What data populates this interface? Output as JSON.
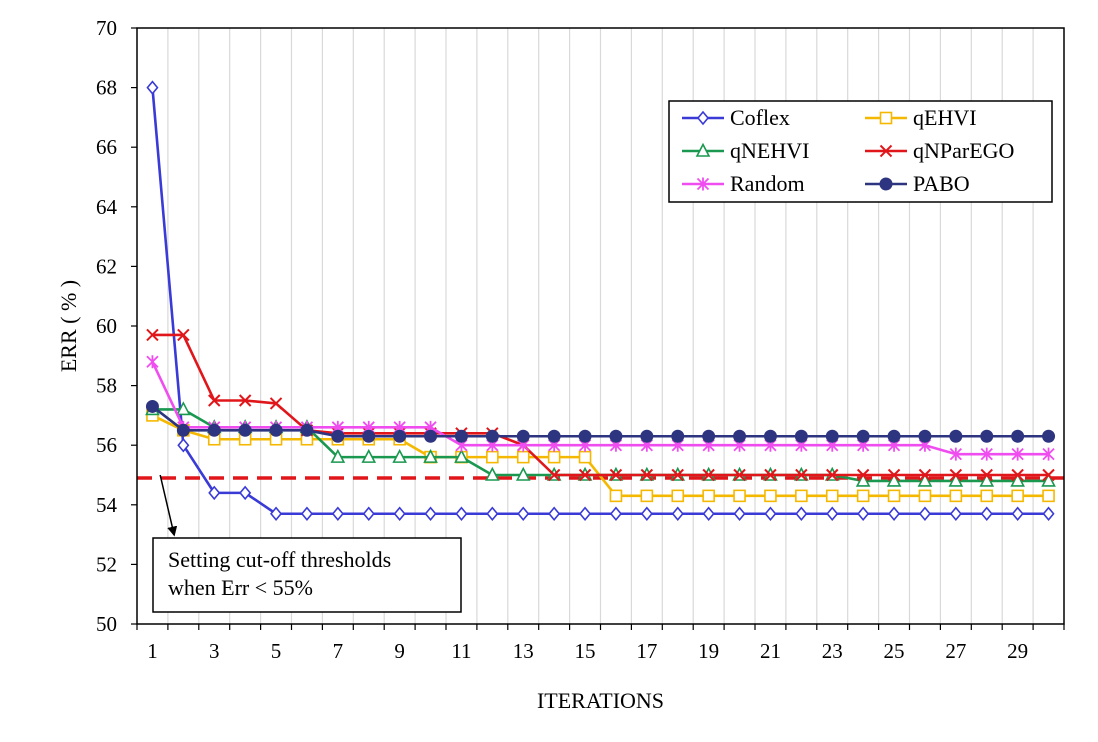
{
  "chart_data": {
    "type": "line",
    "title": "",
    "xlabel": "ITERATIONS",
    "ylabel": "ERR ( % )",
    "xlim": [
      1,
      30
    ],
    "ylim": [
      50,
      70
    ],
    "ytick_step": 2,
    "xtick_labels": [
      1,
      3,
      5,
      7,
      9,
      11,
      13,
      15,
      17,
      19,
      21,
      23,
      25,
      27,
      29
    ],
    "x_grid": true,
    "y_grid": false,
    "legend_position": "top-right",
    "x": [
      1,
      2,
      3,
      4,
      5,
      6,
      7,
      8,
      9,
      10,
      11,
      12,
      13,
      14,
      15,
      16,
      17,
      18,
      19,
      20,
      21,
      22,
      23,
      24,
      25,
      26,
      27,
      28,
      29,
      30
    ],
    "series": [
      {
        "name": "Coflex",
        "color": "#3a3ad6",
        "marker": "diamond",
        "values": [
          68.0,
          56.0,
          54.4,
          54.4,
          53.7,
          53.7,
          53.7,
          53.7,
          53.7,
          53.7,
          53.7,
          53.7,
          53.7,
          53.7,
          53.7,
          53.7,
          53.7,
          53.7,
          53.7,
          53.7,
          53.7,
          53.7,
          53.7,
          53.7,
          53.7,
          53.7,
          53.7,
          53.7,
          53.7,
          53.7
        ]
      },
      {
        "name": "qEHVI",
        "color": "#f5b800",
        "marker": "square",
        "values": [
          57.0,
          56.5,
          56.2,
          56.2,
          56.2,
          56.2,
          56.2,
          56.2,
          56.2,
          55.6,
          55.6,
          55.6,
          55.6,
          55.6,
          55.6,
          54.3,
          54.3,
          54.3,
          54.3,
          54.3,
          54.3,
          54.3,
          54.3,
          54.3,
          54.3,
          54.3,
          54.3,
          54.3,
          54.3,
          54.3
        ]
      },
      {
        "name": "qNEHVI",
        "color": "#1a9850",
        "marker": "triangle",
        "values": [
          57.2,
          57.2,
          56.6,
          56.6,
          56.6,
          56.6,
          55.6,
          55.6,
          55.6,
          55.6,
          55.6,
          55.0,
          55.0,
          55.0,
          55.0,
          55.0,
          55.0,
          55.0,
          55.0,
          55.0,
          55.0,
          55.0,
          55.0,
          54.8,
          54.8,
          54.8,
          54.8,
          54.8,
          54.8,
          54.8
        ]
      },
      {
        "name": "qNParEGO",
        "color": "#e0161b",
        "marker": "x",
        "values": [
          59.7,
          59.7,
          57.5,
          57.5,
          57.4,
          56.5,
          56.4,
          56.4,
          56.4,
          56.4,
          56.4,
          56.4,
          56.0,
          55.0,
          55.0,
          55.0,
          55.0,
          55.0,
          55.0,
          55.0,
          55.0,
          55.0,
          55.0,
          55.0,
          55.0,
          55.0,
          55.0,
          55.0,
          55.0,
          55.0
        ]
      },
      {
        "name": "Random",
        "color": "#f04df0",
        "marker": "asterisk",
        "values": [
          58.8,
          56.6,
          56.6,
          56.6,
          56.6,
          56.6,
          56.6,
          56.6,
          56.6,
          56.6,
          56.0,
          56.0,
          56.0,
          56.0,
          56.0,
          56.0,
          56.0,
          56.0,
          56.0,
          56.0,
          56.0,
          56.0,
          56.0,
          56.0,
          56.0,
          56.0,
          55.7,
          55.7,
          55.7,
          55.7
        ]
      },
      {
        "name": "PABO",
        "color": "#2e3580",
        "marker": "circle",
        "values": [
          57.3,
          56.5,
          56.5,
          56.5,
          56.5,
          56.5,
          56.3,
          56.3,
          56.3,
          56.3,
          56.3,
          56.3,
          56.3,
          56.3,
          56.3,
          56.3,
          56.3,
          56.3,
          56.3,
          56.3,
          56.3,
          56.3,
          56.3,
          56.3,
          56.3,
          56.3,
          56.3,
          56.3,
          56.3,
          56.3
        ]
      }
    ],
    "threshold": {
      "value": 54.9,
      "color": "#e0161b",
      "style": "dashed"
    },
    "annotation": {
      "lines": [
        "Setting cut-off thresholds",
        "when Err < 55%"
      ],
      "arrow_target": {
        "x": 1.7,
        "y": 53.0
      },
      "arrow_source": {
        "x": 1.25,
        "y": 55.0
      }
    }
  }
}
